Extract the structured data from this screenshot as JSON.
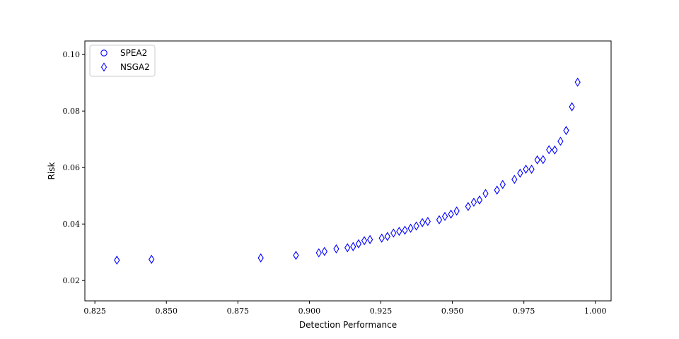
{
  "chart_data": {
    "type": "scatter",
    "title": "",
    "xlabel": "Detection Performance",
    "ylabel": "Risk",
    "xlim": [
      0.8215,
      1.0055
    ],
    "ylim": [
      0.0128,
      0.1048
    ],
    "xticks": [
      "0.825",
      "0.850",
      "0.875",
      "0.900",
      "0.925",
      "0.950",
      "0.975",
      "1.000"
    ],
    "yticks": [
      "0.02",
      "0.04",
      "0.06",
      "0.08",
      "0.10"
    ],
    "grid": false,
    "legend_position": "top-left",
    "series": [
      {
        "name": "SPEA2",
        "marker": "circle",
        "color": "#0000ff",
        "points": []
      },
      {
        "name": "NSGA2",
        "marker": "diamond",
        "color": "#0000ff",
        "points": [
          [
            0.8327,
            0.0272
          ],
          [
            0.8448,
            0.0275
          ],
          [
            0.883,
            0.028
          ],
          [
            0.8953,
            0.0289
          ],
          [
            0.9033,
            0.0298
          ],
          [
            0.9053,
            0.0303
          ],
          [
            0.9094,
            0.0312
          ],
          [
            0.9133,
            0.0316
          ],
          [
            0.9153,
            0.032
          ],
          [
            0.9172,
            0.033
          ],
          [
            0.9192,
            0.0341
          ],
          [
            0.9212,
            0.0345
          ],
          [
            0.9253,
            0.035
          ],
          [
            0.9273,
            0.0356
          ],
          [
            0.9294,
            0.0368
          ],
          [
            0.9314,
            0.0374
          ],
          [
            0.9334,
            0.0378
          ],
          [
            0.9354,
            0.0385
          ],
          [
            0.9374,
            0.0393
          ],
          [
            0.9395,
            0.0405
          ],
          [
            0.9414,
            0.0409
          ],
          [
            0.9454,
            0.0415
          ],
          [
            0.9474,
            0.0427
          ],
          [
            0.9495,
            0.0435
          ],
          [
            0.9515,
            0.0446
          ],
          [
            0.9555,
            0.0462
          ],
          [
            0.9575,
            0.0477
          ],
          [
            0.9595,
            0.0485
          ],
          [
            0.9616,
            0.0508
          ],
          [
            0.9656,
            0.052
          ],
          [
            0.9676,
            0.054
          ],
          [
            0.9717,
            0.0558
          ],
          [
            0.9737,
            0.058
          ],
          [
            0.9757,
            0.0594
          ],
          [
            0.9777,
            0.0594
          ],
          [
            0.9797,
            0.0627
          ],
          [
            0.9817,
            0.0628
          ],
          [
            0.9838,
            0.0663
          ],
          [
            0.9858,
            0.0662
          ],
          [
            0.9878,
            0.0693
          ],
          [
            0.9898,
            0.0731
          ],
          [
            0.9918,
            0.0815
          ],
          [
            0.9938,
            0.0902
          ]
        ]
      }
    ]
  }
}
